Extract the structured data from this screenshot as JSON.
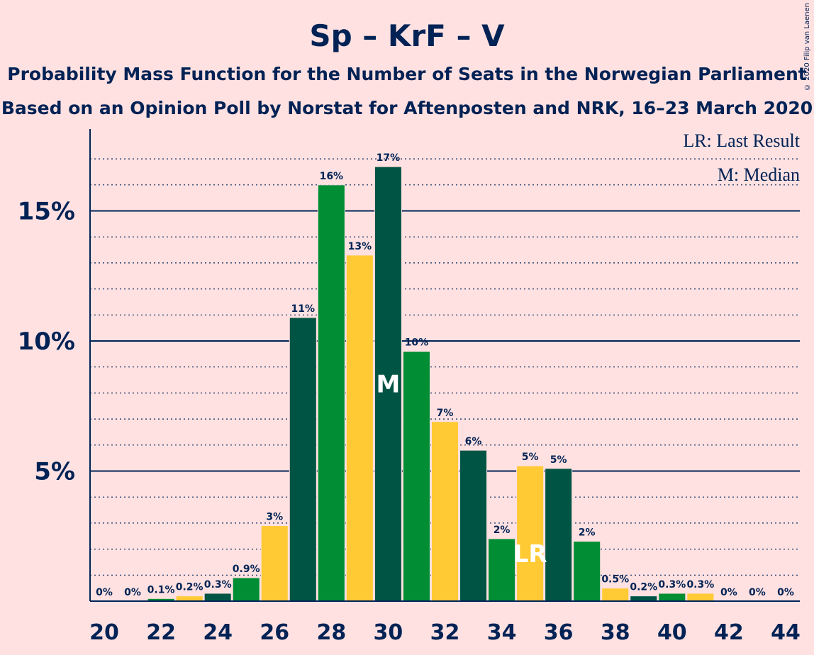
{
  "colors": {
    "background": "#FFE1E1",
    "text": "#002255",
    "dark_green": "#005444",
    "green": "#008D34",
    "yellow": "#FFCA34"
  },
  "chart_data": {
    "type": "bar",
    "title": "Sp – KrF – V",
    "subtitle": [
      "Probability Mass Function for the Number of Seats in the Norwegian Parliament",
      "Based on an Opinion Poll by Norstat for Aftenposten and NRK, 16–23 March 2020"
    ],
    "copyright": "© 2020 Filip van Laenen",
    "legend": [
      "LR: Last Result",
      "M: Median"
    ],
    "ylim": [
      0,
      18
    ],
    "yticks": [
      5,
      10,
      15
    ],
    "ytick_labels": [
      "5%",
      "10%",
      "15%"
    ],
    "xticks": [
      20,
      22,
      24,
      26,
      28,
      30,
      32,
      34,
      36,
      38,
      40,
      42,
      44
    ],
    "x": [
      20,
      21,
      22,
      23,
      24,
      25,
      26,
      27,
      28,
      29,
      30,
      31,
      32,
      33,
      34,
      35,
      36,
      37,
      38,
      39,
      40,
      41,
      42,
      43,
      44
    ],
    "values": [
      0,
      0,
      0.1,
      0.2,
      0.3,
      0.9,
      2.9,
      10.9,
      16.0,
      13.3,
      16.7,
      9.6,
      6.9,
      5.8,
      2.4,
      5.2,
      5.1,
      2.3,
      0.5,
      0.2,
      0.3,
      0.3,
      0,
      0,
      0
    ],
    "labels": [
      "0%",
      "0%",
      "0.1%",
      "0.2%",
      "0.3%",
      "0.9%",
      "3%",
      "11%",
      "16%",
      "13%",
      "17%",
      "10%",
      "7%",
      "6%",
      "2%",
      "5%",
      "5%",
      "2%",
      "0.5%",
      "0.2%",
      "0.3%",
      "0.3%",
      "0%",
      "0%",
      "0%"
    ],
    "median_seat": 30,
    "median_label": "M",
    "last_result_seat": 35,
    "last_result_label": "LR"
  }
}
